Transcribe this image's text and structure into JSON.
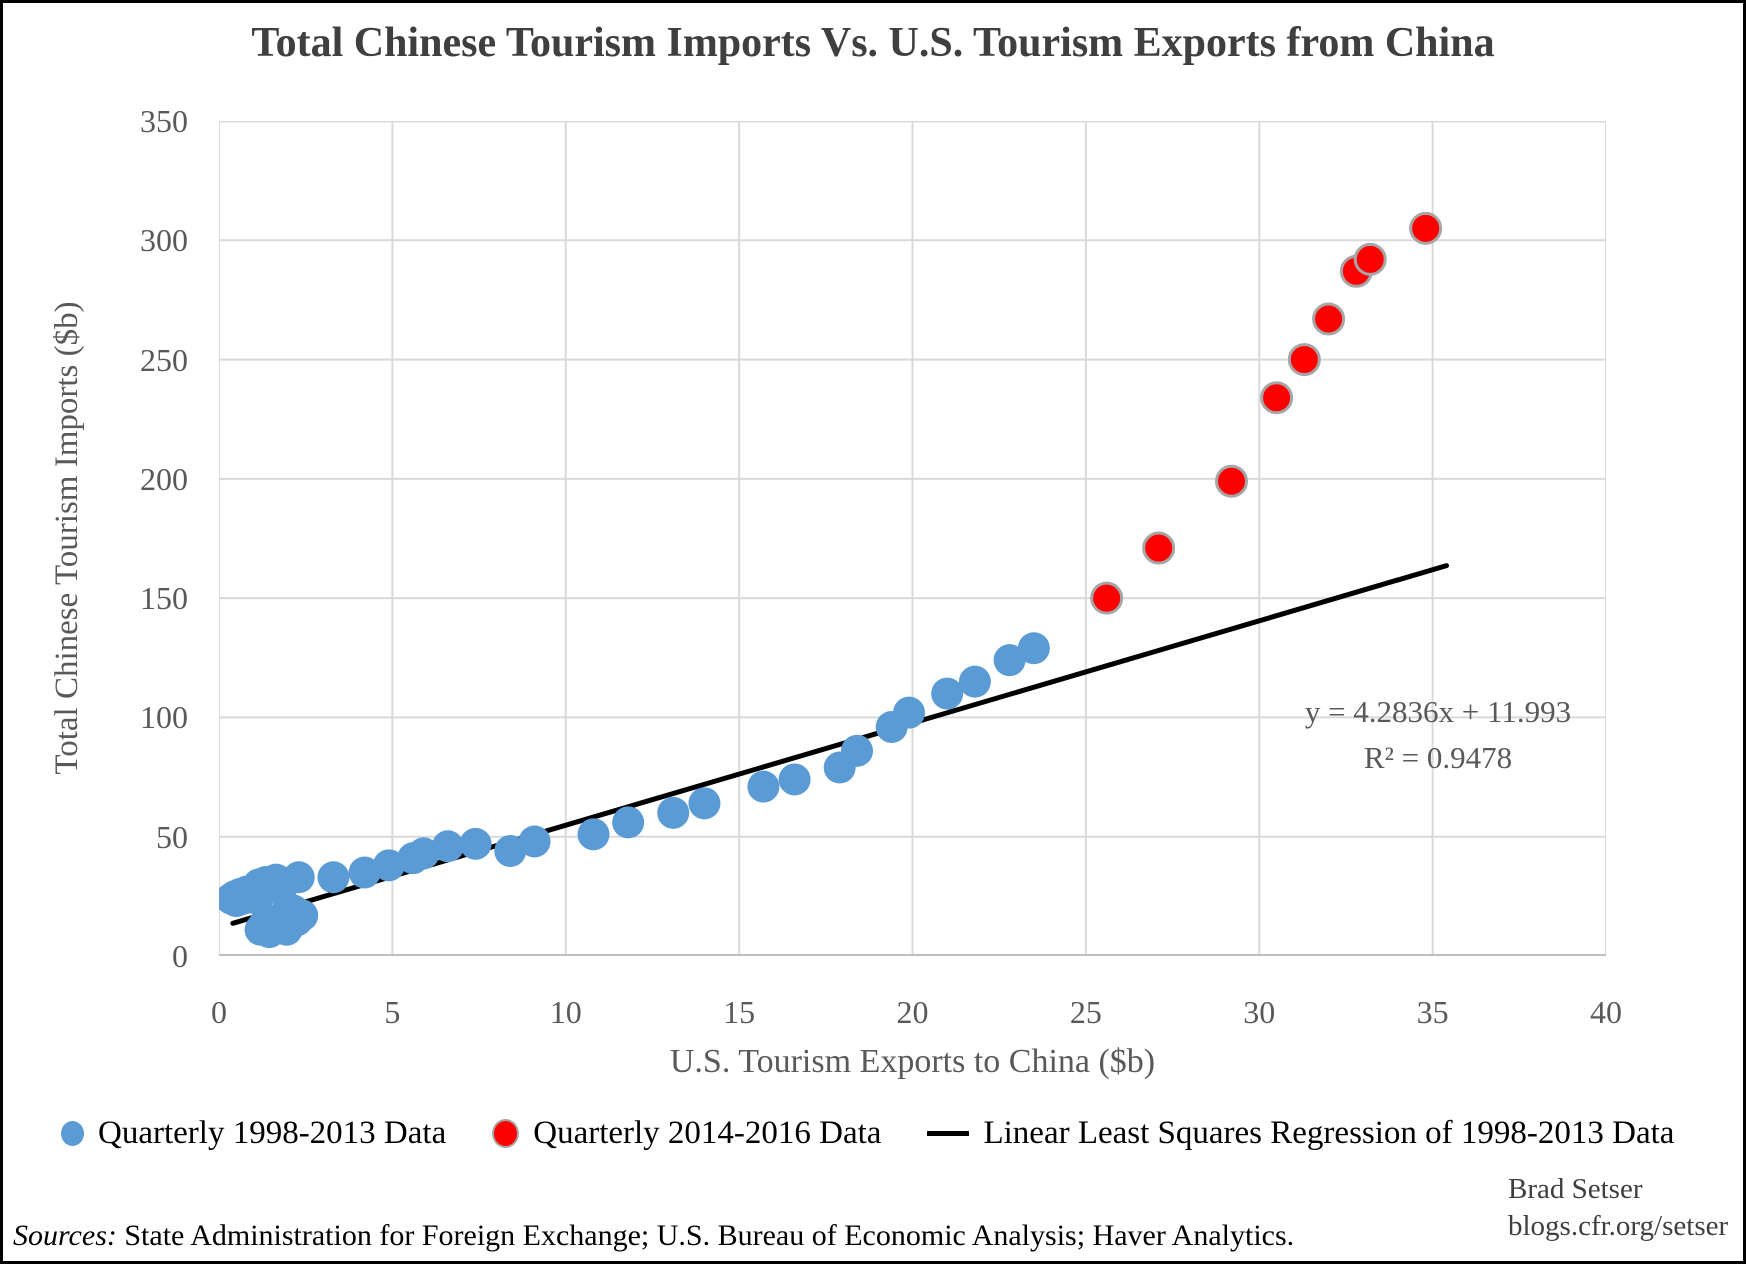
{
  "title": "Total Chinese Tourism Imports Vs. U.S. Tourism Exports from China",
  "annotation": {
    "line1": "y = 4.2836x + 11.993",
    "line2": "R² = 0.9478"
  },
  "legend": {
    "items": [
      {
        "label": "Quarterly 1998-2013 Data",
        "marker": "dot",
        "color": "#5B9BD5",
        "border": "#5B9BD5"
      },
      {
        "label": "Quarterly 2014-2016 Data",
        "marker": "dot",
        "color": "#FF0000",
        "border": "#A6A6A6"
      },
      {
        "label": "Linear Least Squares Regression of 1998-2013 Data",
        "marker": "line",
        "color": "#000000",
        "border": "#000000"
      }
    ]
  },
  "credit": {
    "line1": "Brad Setser",
    "line2": "blogs.cfr.org/setser"
  },
  "sources": {
    "prefix": "Sources:",
    "text": " State Administration for Foreign Exchange; U.S. Bureau of Economic Analysis; Haver Analytics."
  },
  "colors": {
    "title_text": "#3f3f3f",
    "axis_text": "#595959",
    "gridline": "#d9d9d9",
    "axis_line": "#bfbfbf",
    "blue_series": "#5B9BD5",
    "red_series": "#FF0000",
    "red_border": "#A6A6A6",
    "trendline": "#000000"
  },
  "chart_data": {
    "type": "scatter",
    "title": "Total Chinese Tourism Imports Vs. U.S. Tourism Exports from China",
    "xlabel": "U.S. Tourism Exports to China ($b)",
    "ylabel": "Total Chinese Tourism Imports ($b)",
    "xlim": [
      0,
      40
    ],
    "ylim": [
      0,
      350
    ],
    "xticks": [
      0,
      5,
      10,
      15,
      20,
      25,
      30,
      35,
      40
    ],
    "yticks": [
      0,
      50,
      100,
      150,
      200,
      250,
      300,
      350
    ],
    "grid": true,
    "legend_position": "bottom",
    "series": [
      {
        "name": "Quarterly 1998-2013 Data",
        "color": "#5B9BD5",
        "marker_radius": 16,
        "points": [
          [
            0.35,
            24
          ],
          [
            0.45,
            25
          ],
          [
            0.5,
            23
          ],
          [
            0.6,
            26
          ],
          [
            0.7,
            24
          ],
          [
            0.8,
            27
          ],
          [
            0.9,
            25
          ],
          [
            1.0,
            28
          ],
          [
            1.1,
            24
          ],
          [
            1.15,
            30
          ],
          [
            1.25,
            27
          ],
          [
            1.35,
            31
          ],
          [
            1.5,
            29
          ],
          [
            1.65,
            32
          ],
          [
            1.85,
            30
          ],
          [
            2.3,
            33
          ],
          [
            1.2,
            11
          ],
          [
            1.3,
            13
          ],
          [
            1.45,
            10
          ],
          [
            1.55,
            14
          ],
          [
            1.65,
            12
          ],
          [
            1.8,
            16
          ],
          [
            1.95,
            11
          ],
          [
            2.05,
            13
          ],
          [
            2.15,
            19
          ],
          [
            2.25,
            15
          ],
          [
            2.0,
            20
          ],
          [
            2.4,
            17
          ],
          [
            3.3,
            33
          ],
          [
            4.2,
            35
          ],
          [
            4.9,
            38
          ],
          [
            5.6,
            41
          ],
          [
            5.9,
            43
          ],
          [
            6.6,
            46
          ],
          [
            7.4,
            47
          ],
          [
            8.4,
            44
          ],
          [
            9.1,
            48
          ],
          [
            10.8,
            51
          ],
          [
            11.8,
            56
          ],
          [
            13.1,
            60
          ],
          [
            14.0,
            64
          ],
          [
            15.7,
            71
          ],
          [
            16.6,
            74
          ],
          [
            17.9,
            79
          ],
          [
            18.4,
            86
          ],
          [
            19.4,
            96
          ],
          [
            19.9,
            102
          ],
          [
            21.0,
            110
          ],
          [
            21.8,
            115
          ],
          [
            22.8,
            124
          ],
          [
            23.5,
            129
          ]
        ]
      },
      {
        "name": "Quarterly 2014-2016 Data",
        "color": "#FF0000",
        "border": "#A6A6A6",
        "marker_radius": 15,
        "points": [
          [
            25.6,
            150
          ],
          [
            27.1,
            171
          ],
          [
            29.2,
            199
          ],
          [
            30.5,
            234
          ],
          [
            31.3,
            250
          ],
          [
            32.0,
            267
          ],
          [
            32.8,
            287
          ],
          [
            33.2,
            292
          ],
          [
            34.8,
            305
          ]
        ]
      }
    ],
    "trendline": {
      "name": "Linear Least Squares Regression of 1998-2013 Data",
      "equation": "y = 4.2836x + 11.993",
      "r_squared": "R² = 0.9478",
      "slope": 4.2836,
      "intercept": 11.993,
      "x_start": 0.4,
      "x_end": 35.4,
      "color": "#000000",
      "width": 5
    }
  }
}
